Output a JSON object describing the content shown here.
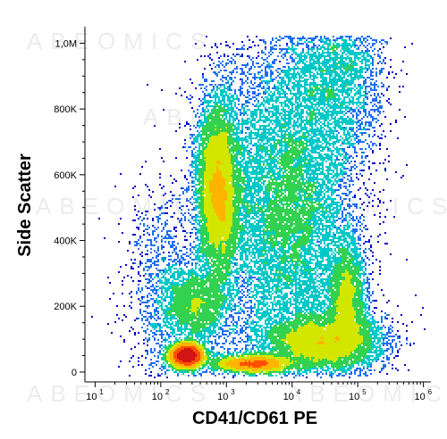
{
  "chart_data": {
    "type": "density_scatter",
    "xlabel": "CD41/CD61 PE",
    "ylabel": "Side Scatter",
    "x_scale": "log",
    "xlim": [
      7,
      1300000
    ],
    "ylim": [
      -30000,
      1050000
    ],
    "x_ticks": [
      {
        "value": 10,
        "base": "10",
        "exp": "1"
      },
      {
        "value": 100,
        "base": "10",
        "exp": "2"
      },
      {
        "value": 1000,
        "base": "10",
        "exp": "3"
      },
      {
        "value": 10000,
        "base": "10",
        "exp": "4"
      },
      {
        "value": 100000,
        "base": "10",
        "exp": "5"
      },
      {
        "value": 1000000,
        "base": "10",
        "exp": "6"
      }
    ],
    "y_ticks": [
      {
        "value": 0,
        "label": "0"
      },
      {
        "value": 200000,
        "label": "200K"
      },
      {
        "value": 400000,
        "label": "400K"
      },
      {
        "value": 600000,
        "label": "600K"
      },
      {
        "value": 800000,
        "label": "800K"
      },
      {
        "value": 1000000,
        "label": "1,0M"
      }
    ],
    "populations": [
      {
        "x_center": 250,
        "y_center": 50000,
        "x_spread_decades": 0.13,
        "y_spread": 18000,
        "weight": 0.11,
        "density": "max"
      },
      {
        "x_center": 750,
        "y_center": 550000,
        "x_spread_decades": 0.16,
        "y_spread": 140000,
        "weight": 0.19,
        "density": "high"
      },
      {
        "x_center": 350,
        "y_center": 200000,
        "x_spread_decades": 0.25,
        "y_spread": 55000,
        "weight": 0.05,
        "density": "medium"
      },
      {
        "x_center": 30000,
        "y_center": 90000,
        "x_spread_decades": 0.45,
        "y_spread": 45000,
        "weight": 0.13,
        "density": "high"
      },
      {
        "x_center": 2500,
        "y_center": 25000,
        "x_spread_decades": 0.3,
        "y_spread": 12000,
        "weight": 0.07,
        "density": "medium"
      },
      {
        "x_center": 70000,
        "y_center": 220000,
        "x_spread_decades": 0.15,
        "y_spread": 90000,
        "weight": 0.06,
        "density": "medium"
      },
      {
        "x_center": 8000,
        "y_center": 500000,
        "x_spread_decades": 0.55,
        "y_spread": 260000,
        "weight": 0.3,
        "density": "low"
      },
      {
        "x_center": 50000,
        "y_center": 900000,
        "x_spread_decades": 0.35,
        "y_spread": 120000,
        "weight": 0.06,
        "density": "low"
      },
      {
        "x_center": 120,
        "y_center": 250000,
        "x_spread_decades": 0.3,
        "y_spread": 150000,
        "weight": 0.03,
        "density": "low"
      }
    ],
    "density_colors": [
      "#0000c8",
      "#1e6ef0",
      "#00c8c8",
      "#32d250",
      "#d2e600",
      "#ffb400",
      "#ff5000",
      "#d21414"
    ],
    "grid": false,
    "legend": "none"
  },
  "watermark": {
    "text": "ABEOMICS"
  }
}
